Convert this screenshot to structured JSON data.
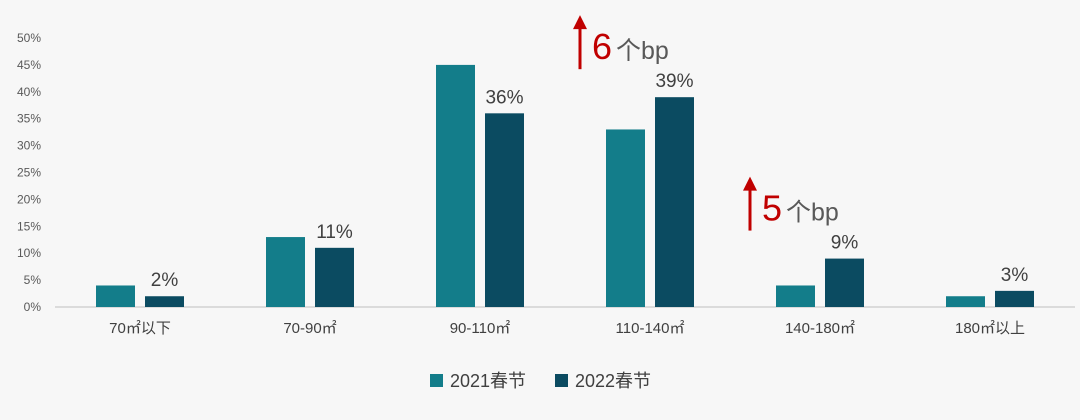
{
  "chart_data": {
    "type": "bar",
    "categories": [
      "70㎡以下",
      "70-90㎡",
      "90-110㎡",
      "110-140㎡",
      "140-180㎡",
      "180㎡以上"
    ],
    "series": [
      {
        "name": "2021春节",
        "values": [
          4,
          13,
          45,
          33,
          4,
          2
        ],
        "color": "#137d8a"
      },
      {
        "name": "2022春节",
        "values": [
          2,
          11,
          36,
          39,
          9,
          3
        ],
        "color": "#0b4b61"
      }
    ],
    "data_labels_2022": [
      "2%",
      "11%",
      "36%",
      "39%",
      "9%",
      "3%"
    ],
    "y_ticks": [
      "0%",
      "5%",
      "10%",
      "15%",
      "20%",
      "25%",
      "30%",
      "35%",
      "40%",
      "45%",
      "50%"
    ],
    "ylim": [
      0,
      50
    ],
    "grid": false,
    "legend_position": "bottom",
    "annotations": [
      {
        "category": "110-140㎡",
        "number": "6",
        "suffix": "个bp",
        "arrow": "up",
        "color": "#c00000"
      },
      {
        "category": "140-180㎡",
        "number": "5",
        "suffix": "个bp",
        "arrow": "up",
        "color": "#c00000"
      }
    ]
  }
}
